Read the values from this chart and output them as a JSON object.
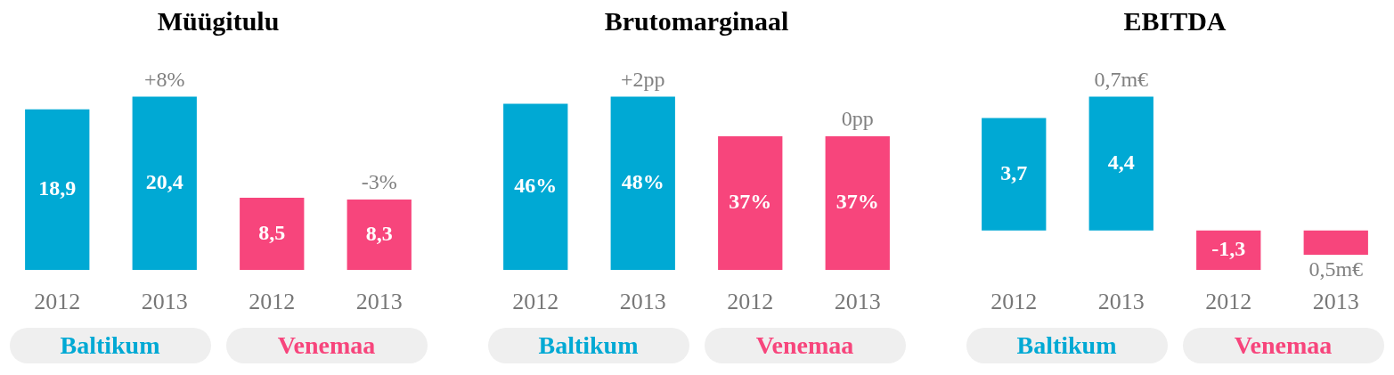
{
  "chart_data": [
    {
      "type": "bar",
      "title": "Müügitulu",
      "categories": [
        "2012",
        "2013",
        "2012",
        "2013"
      ],
      "values": [
        18.9,
        20.4,
        8.5,
        8.3
      ],
      "colors": [
        "#00a9d4",
        "#00a9d4",
        "#f7457c",
        "#f7457c"
      ],
      "value_labels": [
        "18,9",
        "20,4",
        "8,5",
        "8,3"
      ],
      "annotations": [
        "+8%",
        "-3%",
        "Baltikum",
        "Venemaa"
      ],
      "grid": false,
      "legend": false
    },
    {
      "type": "bar",
      "title": "Brutomarginaal",
      "categories": [
        "2012",
        "2013",
        "2012",
        "2013"
      ],
      "values": [
        46,
        48,
        37,
        37
      ],
      "colors": [
        "#00a9d4",
        "#00a9d4",
        "#f7457c",
        "#f7457c"
      ],
      "value_labels": [
        "46%",
        "48%",
        "37%",
        "37%"
      ],
      "annotations": [
        "+2pp",
        "0pp",
        "Baltikum",
        "Venemaa"
      ],
      "grid": false,
      "legend": false
    },
    {
      "type": "bar",
      "title": "EBITDA",
      "categories": [
        "2012",
        "2013",
        "2012",
        "2013"
      ],
      "values": [
        3.7,
        4.4,
        -1.3,
        -0.8
      ],
      "colors": [
        "#00a9d4",
        "#00a9d4",
        "#f7457c",
        "#f7457c"
      ],
      "value_labels": [
        "3,7",
        "4,4",
        "-1,3",
        null
      ],
      "annotations": [
        "0,7m€",
        "0,5m€",
        "Baltikum",
        "Venemaa"
      ],
      "grid": false,
      "legend": false
    }
  ]
}
